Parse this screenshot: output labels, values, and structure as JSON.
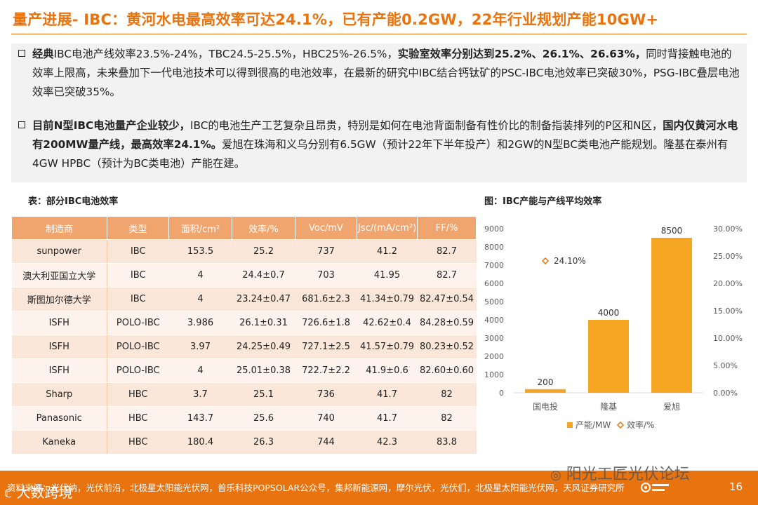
{
  "title": "量产进展- IBC：黄河水电最高效率可达24.1%，已有产能0.2GW，22年行业规划产能10GW+",
  "bullets": {
    "b1": {
      "bold1": "经典",
      "normal1": "IBC电池产线效率23.5%-24%，TBC24.5-25.5%，HBC25%-26.5%，",
      "bold2": "实验室效率分别达到25.2%、26.1%、26.63%，",
      "normal2": "同时背接触电池的效率上限高，未来叠加下一代电池技术可以得到很高的电池效率，在最新的研究中IBC结合钙钛矿的PSC-IBC电池效率已突破30%，PSG-IBC叠层电池效率已突破35%。"
    },
    "b2": {
      "bold1": "目前N型IBC电池量产企业较少，",
      "normal1": "IBC的电池生产工艺复杂且昂贵，特别是如何在电池背面制备有性价比的制备指装排列的P区和N区，",
      "bold2": "国内仅黄河水电有200MW量产线，最高效率24.1%。",
      "normal2": "爱旭在珠海和义乌分别有6.5GW（预计22年下半年投产）和2GW的N型BC类电池产能规划。隆基在泰州有4GW HPBC（预计为BC类电池）产能在建。"
    }
  },
  "table": {
    "caption": "表：部分IBC电池效率",
    "headers": [
      "制造商",
      "类型",
      "面积/cm²",
      "效率/%",
      "Voc/mV",
      "Jsc/(mA/cm²)",
      "FF/%"
    ],
    "rows": [
      [
        "sunpower",
        "IBC",
        "153.5",
        "25.2",
        "737",
        "41.2",
        "82.7"
      ],
      [
        "澳大利亚国立大学",
        "IBC",
        "4",
        "24.4±0.7",
        "703",
        "41.95",
        "82.7"
      ],
      [
        "斯图加尔德大学",
        "IBC",
        "4",
        "23.24±0.47",
        "681.6±2.3",
        "41.34±0.79",
        "82.47±0.54"
      ],
      [
        "ISFH",
        "POLO-IBC",
        "3.986",
        "26.1±0.31",
        "726.6±1.8",
        "42.62±0.4",
        "84.28±0.59"
      ],
      [
        "ISFH",
        "POLO-IBC",
        "3.97",
        "24.25±0.49",
        "727.1±2.5",
        "41.57±0.79",
        "80.23±0.52"
      ],
      [
        "ISFH",
        "POLO-IBC",
        "4",
        "25.01±0.38",
        "722.7±2.2",
        "41.9±0.6",
        "82.60±0.60"
      ],
      [
        "Sharp",
        "HBC",
        "3.7",
        "25.1",
        "736",
        "41.7",
        "82"
      ],
      [
        "Panasonic",
        "HBC",
        "143.7",
        "25.6",
        "740",
        "41.7",
        "82"
      ],
      [
        "Kaneka",
        "HBC",
        "180.4",
        "26.3",
        "744",
        "42.3",
        "83.8"
      ]
    ]
  },
  "chart_caption": "图：IBC产能与产线平均效率",
  "chart_data": {
    "type": "bar",
    "categories": [
      "国电投",
      "隆基",
      "爱旭"
    ],
    "series": [
      {
        "name": "产能/MW",
        "values": [
          200,
          4000,
          8500
        ],
        "color": "#f5a623"
      },
      {
        "name": "效率/%",
        "values": [
          24.1,
          null,
          null
        ],
        "color": "#e8730f",
        "marker": "diamond"
      }
    ],
    "data_labels": [
      "200",
      "4000",
      "8500",
      "24.10%"
    ],
    "y_left": {
      "min": 0,
      "max": 9000,
      "step": 1000,
      "ticks": [
        "0",
        "1000",
        "2000",
        "3000",
        "4000",
        "5000",
        "6000",
        "7000",
        "8000",
        "9000"
      ]
    },
    "y_right": {
      "min": 0,
      "max": 30,
      "step": 5,
      "ticks": [
        "0.00%",
        "5.00%",
        "10.00%",
        "15.00%",
        "20.00%",
        "25.00%",
        "30.00%"
      ]
    },
    "grid": false,
    "legend_position": "bottom"
  },
  "footer": {
    "source": "资料来源：光伏纳，光伏前沿，北极星太阳能光伏网，普乐科技POPSOLAR公众号，集邦新能源网，摩尔光伏，光伏们，北极星太阳能光伏网，天风证券研究所",
    "logo": "天风证券",
    "page": "16"
  },
  "watermarks": {
    "right": "阳光工匠光伏论坛",
    "left": "大数跨境"
  }
}
